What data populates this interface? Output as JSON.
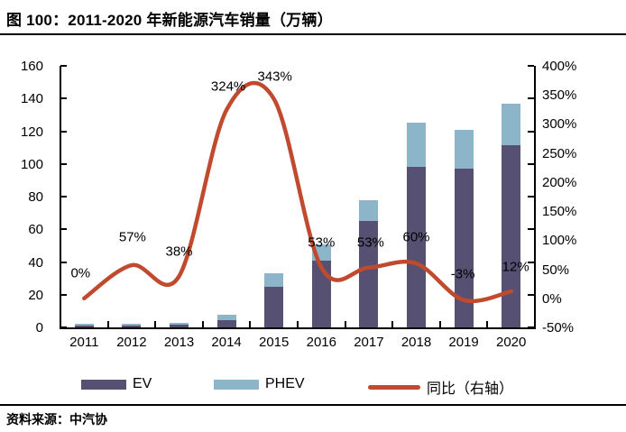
{
  "title": "图 100：2011-2020 年新能源汽车销量（万辆）",
  "source": "资料来源：中汽协",
  "colors": {
    "ev_bar": "#565173",
    "phev_bar": "#8db5c9",
    "yoy_line": "#c04a2d",
    "axis": "#000000"
  },
  "chart_data": {
    "type": "bar",
    "title": "2011-2020 年新能源汽车销量（万辆）",
    "categories": [
      "2011",
      "2012",
      "2013",
      "2014",
      "2015",
      "2016",
      "2017",
      "2018",
      "2019",
      "2020"
    ],
    "series": [
      {
        "name": "EV",
        "type": "bar",
        "stacked": true,
        "axis": "left",
        "values": [
          0.6,
          1.1,
          1.5,
          4.5,
          24.7,
          40.9,
          65.2,
          98.4,
          97.2,
          111.5
        ]
      },
      {
        "name": "PHEV",
        "type": "bar",
        "stacked": true,
        "axis": "left",
        "values": [
          0.2,
          0.2,
          0.3,
          3.0,
          8.4,
          9.8,
          12.5,
          27.1,
          23.4,
          25.2
        ]
      },
      {
        "name": "同比（右轴）",
        "type": "line",
        "axis": "right",
        "values": [
          0,
          57,
          38,
          324,
          343,
          53,
          53,
          60,
          -3,
          12
        ],
        "point_labels": [
          "0%",
          "57%",
          "38%",
          "324%",
          "343%",
          "53%",
          "53%",
          "60%",
          "-3%",
          "12%"
        ]
      }
    ],
    "left_axis": {
      "min": 0,
      "max": 160,
      "step": 20,
      "tick_labels": [
        "0",
        "20",
        "40",
        "60",
        "80",
        "100",
        "120",
        "140",
        "160"
      ]
    },
    "right_axis": {
      "min": -50,
      "max": 400,
      "step": 50,
      "tick_labels": [
        "-50%",
        "0%",
        "50%",
        "100%",
        "150%",
        "200%",
        "250%",
        "300%",
        "350%",
        "400%"
      ]
    },
    "legend": [
      "EV",
      "PHEV",
      "同比（右轴）"
    ],
    "legend_position": "bottom",
    "grid": false
  }
}
